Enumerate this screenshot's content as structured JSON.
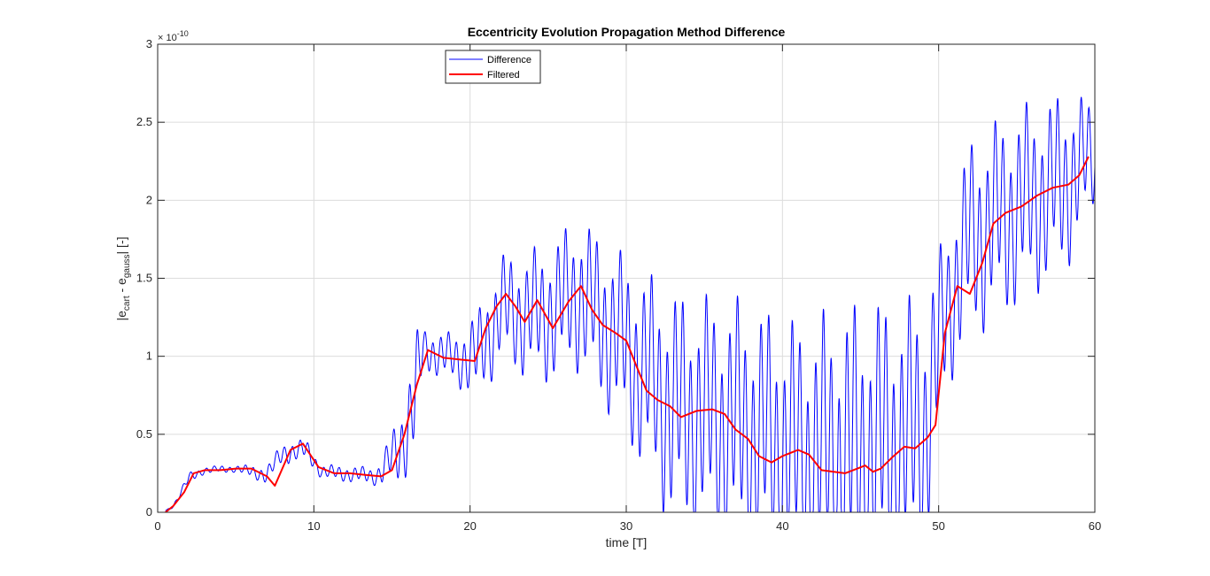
{
  "chart_data": {
    "type": "line",
    "title": "Eccentricity Evolution Propagation Method Difference",
    "xlabel": "time [T]",
    "ylabel": {
      "prefix": "|e",
      "sub1": "cart",
      "middle": " - e",
      "sub2": "gauss",
      "suffix": "| [-]"
    },
    "y_exponent": {
      "base": "× 10",
      "power": "-10"
    },
    "xlim": [
      0,
      60
    ],
    "ylim": [
      0,
      3
    ],
    "x_ticks": [
      "0",
      "10",
      "20",
      "30",
      "40",
      "50",
      "60"
    ],
    "y_ticks": [
      "0",
      "0.5",
      "1",
      "1.5",
      "2",
      "2.5",
      "3"
    ],
    "grid": true,
    "legend_position": "top-center",
    "series": [
      {
        "name": "Difference",
        "color": "#0000ff",
        "style": "thin line, high-frequency oscillation",
        "oscillation_period": 0.5,
        "envelope": [
          {
            "x": 0.5,
            "center": 0.01,
            "amp": 0.0
          },
          {
            "x": 1.0,
            "center": 0.04,
            "amp": 0.01
          },
          {
            "x": 2.0,
            "center": 0.22,
            "amp": 0.03
          },
          {
            "x": 3.0,
            "center": 0.27,
            "amp": 0.02
          },
          {
            "x": 5.0,
            "center": 0.28,
            "amp": 0.02
          },
          {
            "x": 7.0,
            "center": 0.24,
            "amp": 0.05
          },
          {
            "x": 8.0,
            "center": 0.38,
            "amp": 0.06
          },
          {
            "x": 9.5,
            "center": 0.4,
            "amp": 0.06
          },
          {
            "x": 10.5,
            "center": 0.26,
            "amp": 0.04
          },
          {
            "x": 14.0,
            "center": 0.23,
            "amp": 0.05
          },
          {
            "x": 15.5,
            "center": 0.4,
            "amp": 0.2
          },
          {
            "x": 16.5,
            "center": 0.75,
            "amp": 0.35
          },
          {
            "x": 17.0,
            "center": 1.05,
            "amp": 0.12
          },
          {
            "x": 19.0,
            "center": 0.98,
            "amp": 0.14
          },
          {
            "x": 20.5,
            "center": 1.0,
            "amp": 0.25
          },
          {
            "x": 22.0,
            "center": 1.3,
            "amp": 0.3
          },
          {
            "x": 24.5,
            "center": 1.25,
            "amp": 0.38
          },
          {
            "x": 27.0,
            "center": 1.4,
            "amp": 0.42
          },
          {
            "x": 30.0,
            "center": 1.05,
            "amp": 0.5
          },
          {
            "x": 33.0,
            "center": 0.65,
            "amp": 0.65
          },
          {
            "x": 37.0,
            "center": 0.55,
            "amp": 0.7
          },
          {
            "x": 41.0,
            "center": 0.35,
            "amp": 0.75
          },
          {
            "x": 45.0,
            "center": 0.35,
            "amp": 0.85
          },
          {
            "x": 49.0,
            "center": 0.5,
            "amp": 0.75
          },
          {
            "x": 50.5,
            "center": 1.3,
            "amp": 0.45
          },
          {
            "x": 52.0,
            "center": 1.75,
            "amp": 0.55
          },
          {
            "x": 55.0,
            "center": 1.95,
            "amp": 0.55
          },
          {
            "x": 58.0,
            "center": 2.1,
            "amp": 0.5
          },
          {
            "x": 60.0,
            "center": 2.3,
            "amp": 0.3
          }
        ]
      },
      {
        "name": "Filtered",
        "color": "#ff0000",
        "x": [
          0.5,
          1.0,
          1.7,
          2.3,
          3.0,
          4.0,
          5.0,
          6.0,
          7.0,
          7.5,
          8.5,
          9.3,
          10.3,
          11.3,
          12.3,
          13.3,
          14.3,
          15.0,
          15.8,
          16.6,
          17.3,
          18.3,
          19.3,
          20.3,
          21.0,
          21.7,
          22.3,
          22.9,
          23.5,
          24.3,
          25.3,
          26.3,
          27.1,
          27.8,
          28.5,
          29.3,
          30.0,
          30.6,
          31.3,
          32.0,
          32.8,
          33.5,
          34.5,
          35.5,
          36.3,
          37.0,
          37.8,
          38.5,
          39.3,
          40.0,
          41.0,
          41.7,
          42.5,
          43.3,
          44.0,
          44.8,
          45.3,
          45.8,
          46.3,
          47.0,
          47.8,
          48.5,
          49.3,
          49.8,
          50.4,
          51.2,
          52.0,
          52.8,
          53.5,
          54.3,
          55.3,
          56.3,
          57.3,
          58.3,
          59.0,
          59.6
        ],
        "y": [
          0.0,
          0.04,
          0.13,
          0.25,
          0.27,
          0.27,
          0.28,
          0.28,
          0.23,
          0.17,
          0.4,
          0.44,
          0.29,
          0.25,
          0.25,
          0.24,
          0.23,
          0.27,
          0.5,
          0.82,
          1.04,
          0.99,
          0.98,
          0.97,
          1.18,
          1.32,
          1.4,
          1.32,
          1.22,
          1.36,
          1.18,
          1.35,
          1.45,
          1.3,
          1.2,
          1.15,
          1.1,
          0.95,
          0.78,
          0.72,
          0.68,
          0.61,
          0.65,
          0.66,
          0.63,
          0.53,
          0.47,
          0.36,
          0.32,
          0.36,
          0.4,
          0.37,
          0.27,
          0.26,
          0.25,
          0.28,
          0.3,
          0.26,
          0.28,
          0.35,
          0.42,
          0.41,
          0.48,
          0.56,
          1.15,
          1.45,
          1.4,
          1.6,
          1.85,
          1.92,
          1.96,
          2.03,
          2.08,
          2.1,
          2.16,
          2.28
        ]
      }
    ]
  }
}
